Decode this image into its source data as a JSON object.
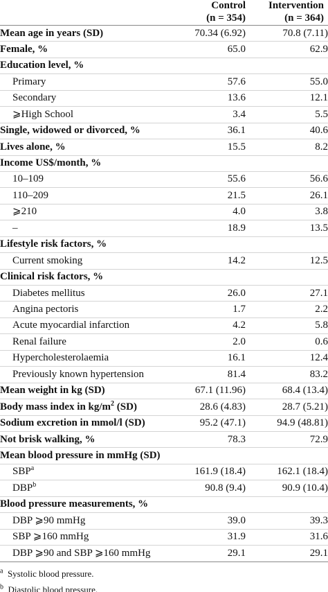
{
  "header": {
    "columns": [
      {
        "name": "Control",
        "n": "(n = 354)"
      },
      {
        "name": "Intervention",
        "n": "(n = 364)"
      }
    ]
  },
  "groups": [
    {
      "label": "Mean age in years (SD)",
      "control": "70.34 (6.92)",
      "intervention": "70.8 (7.11)"
    },
    {
      "label": "Female, %",
      "control": "65.0",
      "intervention": "62.9"
    },
    {
      "label": "Education level, %",
      "items": [
        {
          "label": "Primary",
          "control": "57.6",
          "intervention": "55.0"
        },
        {
          "label": "Secondary",
          "control": "13.6",
          "intervention": "12.1"
        },
        {
          "label": "⩾High School",
          "control": "3.4",
          "intervention": "5.5"
        }
      ]
    },
    {
      "label": "Single, widowed or divorced, %",
      "control": "36.1",
      "intervention": "40.6"
    },
    {
      "label": "Lives alone, %",
      "control": "15.5",
      "intervention": "8.2"
    },
    {
      "label": "Income US$/month, %",
      "items": [
        {
          "label": "10–109",
          "control": "55.6",
          "intervention": "56.6"
        },
        {
          "label": "110–209",
          "control": "21.5",
          "intervention": "26.1"
        },
        {
          "label": "⩾210",
          "control": "4.0",
          "intervention": "3.8"
        },
        {
          "label": "–",
          "control": "18.9",
          "intervention": "13.5"
        }
      ]
    },
    {
      "label": "Lifestyle risk factors, %",
      "items": [
        {
          "label": "Current smoking",
          "control": "14.2",
          "intervention": "12.5"
        }
      ]
    },
    {
      "label": "Clinical risk factors, %",
      "items": [
        {
          "label": "Diabetes mellitus",
          "control": "26.0",
          "intervention": "27.1"
        },
        {
          "label": "Angina pectoris",
          "control": "1.7",
          "intervention": "2.2"
        },
        {
          "label": "Acute myocardial infarction",
          "control": "4.2",
          "intervention": "5.8"
        },
        {
          "label": "Renal failure",
          "control": "2.0",
          "intervention": "0.6"
        },
        {
          "label": "Hypercholesterolaemia",
          "control": "16.1",
          "intervention": "12.4"
        },
        {
          "label": "Previously known hypertension",
          "control": "81.4",
          "intervention": "83.2"
        }
      ]
    },
    {
      "label": "Mean weight in kg (SD)",
      "control": "67.1 (11.96)",
      "intervention": "68.4 (13.4)"
    },
    {
      "label": "Body mass index in kg/m",
      "sup": "2",
      "label_end": " (SD)",
      "control": "28.6 (4.83)",
      "intervention": "28.7 (5.21)"
    },
    {
      "label": "Sodium excretion in mmol/l (SD)",
      "control": "95.2 (47.1)",
      "intervention": "94.9 (48.81)"
    },
    {
      "label": "Not brisk walking, %",
      "control": "78.3",
      "intervention": "72.9"
    },
    {
      "label": "Mean blood pressure in mmHg (SD)",
      "items": [
        {
          "label": "SBP",
          "sup": "a",
          "control": "161.9 (18.4)",
          "intervention": "162.1 (18.4)"
        },
        {
          "label": "DBP",
          "sup": "b",
          "control": "90.8 (9.4)",
          "intervention": "90.9 (10.4)"
        }
      ]
    },
    {
      "label": "Blood pressure measurements, %",
      "items": [
        {
          "label": "DBP ⩾90 mmHg",
          "control": "39.0",
          "intervention": "39.3"
        },
        {
          "label": "SBP ⩾160 mmHg",
          "control": "31.9",
          "intervention": "31.6"
        },
        {
          "label": "DBP ⩾90 and SBP ⩾160 mmHg",
          "control": "29.1",
          "intervention": "29.1"
        }
      ]
    }
  ],
  "footnotes": [
    {
      "mark": "a",
      "text": "Systolic blood pressure."
    },
    {
      "mark": "b",
      "text": "Diastolic blood pressure."
    }
  ]
}
